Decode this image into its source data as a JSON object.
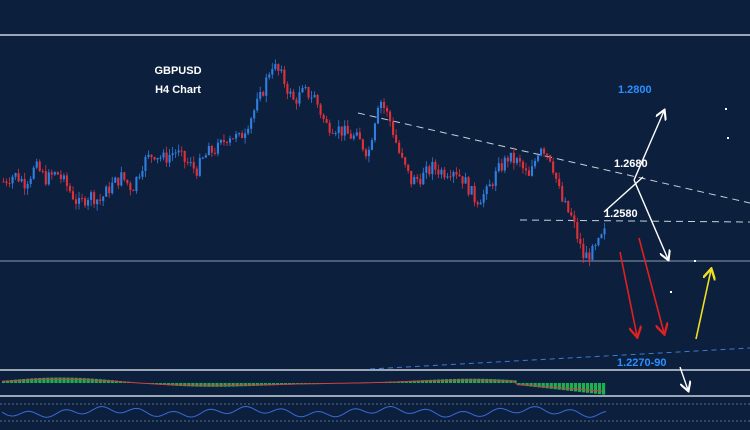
{
  "chart_data": {
    "type": "candlestick",
    "symbol": "GBPUSD",
    "timeframe": "H4 Chart",
    "colors": {
      "background": "#0c1f3d",
      "up_candle": "#2f7fe0",
      "down_candle": "#e0303a",
      "trendline": "#c8d0dc",
      "support_line": "#3a7bd5",
      "target_up": "#2b8fff",
      "macd_histogram": "#1fae50",
      "arrow_bear": "#e02020",
      "arrow_bull": "#f0e020",
      "arrow_path": "#ffffff"
    },
    "price_labels": [
      {
        "name": "target-1",
        "text": "1.2800",
        "color": "#2b8fff"
      },
      {
        "name": "resistance-1",
        "text": "1.2680",
        "color": "#ffffff"
      },
      {
        "name": "resistance-2",
        "text": "1.2580",
        "color": "#ffffff"
      },
      {
        "name": "support-zone",
        "text": "1.2270-90",
        "color": "#2b8fff"
      }
    ],
    "ylim": [
      1.22,
      1.29
    ],
    "close_path": [
      1.26,
      1.2615,
      1.2598,
      1.263,
      1.2605,
      1.2618,
      1.2588,
      1.255,
      1.2572,
      1.256,
      1.259,
      1.261,
      1.2585,
      1.264,
      1.266,
      1.2648,
      1.2665,
      1.264,
      1.2625,
      1.266,
      1.267,
      1.27,
      1.269,
      1.2735,
      1.278,
      1.285,
      1.282,
      1.277,
      1.279,
      1.278,
      1.272,
      1.2715,
      1.27,
      1.269,
      1.266,
      1.278,
      1.273,
      1.265,
      1.26,
      1.261,
      1.263,
      1.262,
      1.2628,
      1.26,
      1.256,
      1.2575,
      1.262,
      1.265,
      1.264,
      1.2605,
      1.268,
      1.265,
      1.256,
      1.252,
      1.244,
      1.245,
      1.249
    ]
  }
}
